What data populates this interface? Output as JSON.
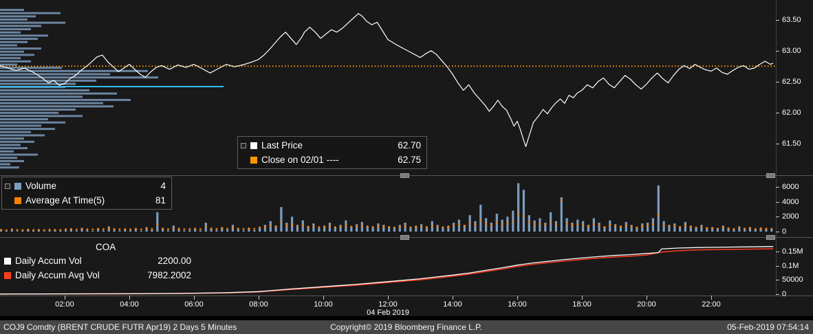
{
  "statusbar": {
    "left": "COJ9 Comdty (BRENT CRUDE FUTR  Apr19) 2 Days 5 Minutes",
    "center": "Copyright© 2019 Bloomberg Finance L.P.",
    "right": "05-Feb-2019 07:54:14"
  },
  "price_legend": {
    "row1_label": "Last Price",
    "row1_value": "62.70",
    "row2_label": "Close on 02/01",
    "row2_dash": "----",
    "row2_value": "62.75"
  },
  "volume_legend": {
    "row1_label": "Volume",
    "row1_value": "4",
    "row2_label": "Average At Time(5)",
    "row2_value": "81"
  },
  "accum_legend": {
    "title": "COA",
    "row1_label": "Daily Accum Vol",
    "row1_value": "2200.00",
    "row2_label": "Daily Accum Avg Vol",
    "row2_value": "7982.2002"
  },
  "colors": {
    "price_line": "#ffffff",
    "close_line": "#ff9800",
    "support_line": "#33bbee",
    "volume_bar": "#7e9dc0",
    "avg_dot": "#ff7f00",
    "accum_vol": "#ffffff",
    "accum_avg": "#ff3d1f",
    "axis_text": "#ffffff",
    "background": "#191919",
    "statusbar_bg": "#464646"
  },
  "chart_data": {
    "type": "line",
    "title": "COJ9 Comdty (BRENT CRUDE FUTR Apr19) 2 Days 5 Minutes",
    "x_axis": {
      "ticks": [
        "02:00",
        "04:00",
        "06:00",
        "08:00",
        "10:00",
        "12:00",
        "14:00",
        "16:00",
        "18:00",
        "20:00",
        "22:00"
      ],
      "tick_minutes": [
        120,
        240,
        360,
        480,
        600,
        720,
        840,
        960,
        1080,
        1200,
        1320
      ],
      "date_label": "04 Feb 2019"
    },
    "price_panel": {
      "type": "line",
      "series_name": "Last Price",
      "last_price": 62.7,
      "close_line": {
        "label": "Close on 02/01",
        "value": 62.75
      },
      "support_line": {
        "value": 62.42,
        "end_minute": 415
      },
      "y_axis": {
        "labels": [
          "63.50",
          "63.00",
          "62.50",
          "62.00",
          "61.50"
        ],
        "values": [
          63.5,
          63.0,
          62.5,
          62.0,
          61.5
        ]
      },
      "points": [
        [
          0,
          62.76
        ],
        [
          15,
          62.72
        ],
        [
          30,
          62.68
        ],
        [
          45,
          62.72
        ],
        [
          60,
          62.66
        ],
        [
          75,
          62.58
        ],
        [
          90,
          62.48
        ],
        [
          100,
          62.52
        ],
        [
          110,
          62.44
        ],
        [
          120,
          62.47
        ],
        [
          130,
          62.55
        ],
        [
          140,
          62.6
        ],
        [
          150,
          62.68
        ],
        [
          165,
          62.78
        ],
        [
          180,
          62.9
        ],
        [
          190,
          62.93
        ],
        [
          200,
          62.82
        ],
        [
          210,
          62.74
        ],
        [
          220,
          62.66
        ],
        [
          230,
          62.72
        ],
        [
          240,
          62.78
        ],
        [
          250,
          62.7
        ],
        [
          260,
          62.62
        ],
        [
          270,
          62.57
        ],
        [
          280,
          62.66
        ],
        [
          290,
          62.73
        ],
        [
          300,
          62.76
        ],
        [
          315,
          62.7
        ],
        [
          330,
          62.77
        ],
        [
          345,
          62.73
        ],
        [
          360,
          62.78
        ],
        [
          375,
          62.71
        ],
        [
          390,
          62.64
        ],
        [
          405,
          62.71
        ],
        [
          420,
          62.78
        ],
        [
          435,
          62.74
        ],
        [
          450,
          62.77
        ],
        [
          465,
          62.81
        ],
        [
          480,
          62.86
        ],
        [
          490,
          62.93
        ],
        [
          500,
          63.02
        ],
        [
          510,
          63.12
        ],
        [
          520,
          63.22
        ],
        [
          530,
          63.3
        ],
        [
          540,
          63.2
        ],
        [
          550,
          63.1
        ],
        [
          560,
          63.22
        ],
        [
          565,
          63.3
        ],
        [
          575,
          63.38
        ],
        [
          585,
          63.3
        ],
        [
          595,
          63.2
        ],
        [
          605,
          63.27
        ],
        [
          615,
          63.34
        ],
        [
          625,
          63.3
        ],
        [
          635,
          63.36
        ],
        [
          645,
          63.44
        ],
        [
          655,
          63.52
        ],
        [
          665,
          63.6
        ],
        [
          672,
          63.56
        ],
        [
          680,
          63.48
        ],
        [
          690,
          63.42
        ],
        [
          700,
          63.46
        ],
        [
          710,
          63.32
        ],
        [
          720,
          63.18
        ],
        [
          735,
          63.1
        ],
        [
          750,
          63.03
        ],
        [
          765,
          62.96
        ],
        [
          780,
          62.89
        ],
        [
          790,
          62.95
        ],
        [
          800,
          63.0
        ],
        [
          810,
          62.94
        ],
        [
          820,
          62.84
        ],
        [
          830,
          62.74
        ],
        [
          840,
          62.62
        ],
        [
          850,
          62.48
        ],
        [
          860,
          62.36
        ],
        [
          870,
          62.45
        ],
        [
          880,
          62.32
        ],
        [
          890,
          62.22
        ],
        [
          900,
          62.12
        ],
        [
          908,
          62.02
        ],
        [
          916,
          62.1
        ],
        [
          924,
          62.2
        ],
        [
          932,
          62.1
        ],
        [
          940,
          62.04
        ],
        [
          948,
          61.9
        ],
        [
          954,
          61.78
        ],
        [
          960,
          61.86
        ],
        [
          966,
          61.72
        ],
        [
          972,
          61.55
        ],
        [
          976,
          61.45
        ],
        [
          982,
          61.62
        ],
        [
          990,
          61.84
        ],
        [
          1000,
          61.95
        ],
        [
          1008,
          62.05
        ],
        [
          1016,
          61.98
        ],
        [
          1024,
          62.08
        ],
        [
          1032,
          62.16
        ],
        [
          1040,
          62.22
        ],
        [
          1048,
          62.15
        ],
        [
          1056,
          62.28
        ],
        [
          1064,
          62.24
        ],
        [
          1072,
          62.32
        ],
        [
          1080,
          62.36
        ],
        [
          1090,
          62.45
        ],
        [
          1100,
          62.4
        ],
        [
          1110,
          62.5
        ],
        [
          1120,
          62.56
        ],
        [
          1130,
          62.46
        ],
        [
          1140,
          62.4
        ],
        [
          1150,
          62.5
        ],
        [
          1160,
          62.6
        ],
        [
          1170,
          62.54
        ],
        [
          1180,
          62.45
        ],
        [
          1190,
          62.38
        ],
        [
          1200,
          62.46
        ],
        [
          1210,
          62.56
        ],
        [
          1220,
          62.64
        ],
        [
          1230,
          62.55
        ],
        [
          1240,
          62.48
        ],
        [
          1250,
          62.6
        ],
        [
          1260,
          62.7
        ],
        [
          1270,
          62.76
        ],
        [
          1280,
          62.71
        ],
        [
          1290,
          62.78
        ],
        [
          1300,
          62.73
        ],
        [
          1310,
          62.69
        ],
        [
          1320,
          62.67
        ],
        [
          1330,
          62.72
        ],
        [
          1340,
          62.65
        ],
        [
          1350,
          62.62
        ],
        [
          1360,
          62.68
        ],
        [
          1370,
          62.73
        ],
        [
          1380,
          62.76
        ],
        [
          1390,
          62.7
        ],
        [
          1400,
          62.72
        ],
        [
          1410,
          62.78
        ],
        [
          1420,
          62.83
        ],
        [
          1430,
          62.78
        ],
        [
          1435,
          62.8
        ]
      ],
      "volume_profile": {
        "top_price": 63.66,
        "price_step": 0.052,
        "widths": [
          35,
          88,
          52,
          40,
          95,
          60,
          45,
          30,
          70,
          55,
          40,
          25,
          60,
          35,
          50,
          30,
          45,
          25,
          90,
          215,
          160,
          230,
          140,
          110,
          95,
          130,
          170,
          120,
          190,
          150,
          165,
          110,
          85,
          120,
          70,
          95,
          60,
          80,
          45,
          65,
          35,
          50,
          30,
          40,
          20,
          55,
          25,
          35,
          15,
          28
        ]
      }
    },
    "volume_panel": {
      "type": "bar",
      "interval_minutes": 10,
      "y_axis": {
        "labels": [
          "6000",
          "4000",
          "2000",
          "0"
        ],
        "values": [
          6000,
          4000,
          2000,
          0
        ]
      },
      "volume": [
        150,
        80,
        220,
        60,
        120,
        300,
        90,
        180,
        60,
        140,
        250,
        100,
        200,
        350,
        120,
        500,
        180,
        90,
        400,
        150,
        700,
        250,
        120,
        300,
        180,
        420,
        90,
        600,
        220,
        2600,
        400,
        150,
        800,
        300,
        120,
        200,
        350,
        150,
        1200,
        400,
        200,
        600,
        250,
        900,
        300,
        150,
        450,
        200,
        600,
        900,
        1400,
        800,
        3300,
        1200,
        2000,
        900,
        1500,
        700,
        1100,
        500,
        800,
        1200,
        600,
        900,
        1500,
        700,
        1000,
        1300,
        800,
        600,
        1100,
        900,
        700,
        500,
        900,
        1200,
        600,
        800,
        1000,
        700,
        1400,
        900,
        600,
        800,
        1200,
        1600,
        900,
        2200,
        1400,
        3600,
        1800,
        1200,
        2400,
        1600,
        2000,
        2800,
        6500,
        5600,
        2200,
        1500,
        1800,
        1200,
        2600,
        1400,
        4600,
        1800,
        1200,
        1600,
        1400,
        900,
        1800,
        1200,
        700,
        1500,
        1000,
        800,
        1300,
        900,
        600,
        1100,
        1200,
        1800,
        6200,
        1400,
        900,
        1100,
        700,
        1300,
        800,
        600,
        900,
        500,
        600,
        400,
        800,
        500,
        300,
        700,
        400,
        600,
        300,
        500,
        400,
        350
      ],
      "avg_at_time": [
        250,
        180,
        300,
        220,
        190,
        280,
        210,
        240,
        200,
        260,
        230,
        210,
        300,
        340,
        280,
        360,
        310,
        290,
        380,
        320,
        420,
        350,
        300,
        330,
        320,
        380,
        290,
        420,
        350,
        900,
        420,
        330,
        500,
        380,
        310,
        340,
        400,
        330,
        600,
        420,
        360,
        480,
        390,
        550,
        410,
        350,
        430,
        380,
        550,
        650,
        800,
        700,
        1200,
        800,
        950,
        700,
        850,
        650,
        750,
        600,
        650,
        750,
        600,
        700,
        850,
        650,
        720,
        780,
        660,
        620,
        730,
        680,
        600,
        550,
        680,
        750,
        580,
        640,
        700,
        600,
        780,
        660,
        580,
        640,
        800,
        950,
        750,
        1100,
        900,
        1500,
        1050,
        900,
        1250,
        1000,
        1150,
        1400,
        2400,
        2100,
        1300,
        1000,
        1100,
        900,
        1300,
        950,
        4200,
        1100,
        900,
        1000,
        900,
        700,
        1000,
        850,
        600,
        900,
        750,
        650,
        850,
        700,
        550,
        750,
        800,
        1000,
        2200,
        900,
        700,
        800,
        600,
        850,
        650,
        550,
        700,
        500,
        500,
        400,
        600,
        450,
        350,
        550,
        400,
        500,
        350,
        450,
        400,
        380
      ]
    },
    "accum_panel": {
      "type": "line",
      "y_axis": {
        "labels": [
          "0.15M",
          "0.1M",
          "50000",
          "0"
        ],
        "values": [
          150000,
          100000,
          50000,
          0
        ]
      },
      "daily_accum_vol": [
        [
          0,
          500
        ],
        [
          240,
          1500
        ],
        [
          330,
          2500
        ],
        [
          420,
          5000
        ],
        [
          480,
          9000
        ],
        [
          540,
          18000
        ],
        [
          600,
          26000
        ],
        [
          660,
          34000
        ],
        [
          720,
          44000
        ],
        [
          780,
          54000
        ],
        [
          840,
          67000
        ],
        [
          870,
          74000
        ],
        [
          900,
          83000
        ],
        [
          930,
          92000
        ],
        [
          960,
          102000
        ],
        [
          990,
          110000
        ],
        [
          1020,
          116000
        ],
        [
          1050,
          122000
        ],
        [
          1080,
          127000
        ],
        [
          1110,
          132000
        ],
        [
          1140,
          136000
        ],
        [
          1170,
          139000
        ],
        [
          1200,
          143000
        ],
        [
          1222,
          146000
        ],
        [
          1228,
          159000
        ],
        [
          1260,
          162000
        ],
        [
          1290,
          163500
        ],
        [
          1320,
          164500
        ],
        [
          1380,
          166000
        ],
        [
          1435,
          167500
        ]
      ],
      "daily_accum_avg_vol": [
        [
          0,
          300
        ],
        [
          240,
          1200
        ],
        [
          330,
          2100
        ],
        [
          420,
          4300
        ],
        [
          480,
          8000
        ],
        [
          540,
          16500
        ],
        [
          600,
          24000
        ],
        [
          660,
          31500
        ],
        [
          720,
          41000
        ],
        [
          780,
          50500
        ],
        [
          840,
          63000
        ],
        [
          870,
          70000
        ],
        [
          900,
          79000
        ],
        [
          930,
          87500
        ],
        [
          960,
          97000
        ],
        [
          990,
          105000
        ],
        [
          1020,
          111000
        ],
        [
          1050,
          117000
        ],
        [
          1080,
          122000
        ],
        [
          1110,
          126500
        ],
        [
          1140,
          130500
        ],
        [
          1170,
          133500
        ],
        [
          1200,
          137500
        ],
        [
          1228,
          148000
        ],
        [
          1260,
          153000
        ],
        [
          1290,
          155000
        ],
        [
          1320,
          156500
        ],
        [
          1380,
          158000
        ],
        [
          1435,
          159500
        ]
      ]
    }
  }
}
